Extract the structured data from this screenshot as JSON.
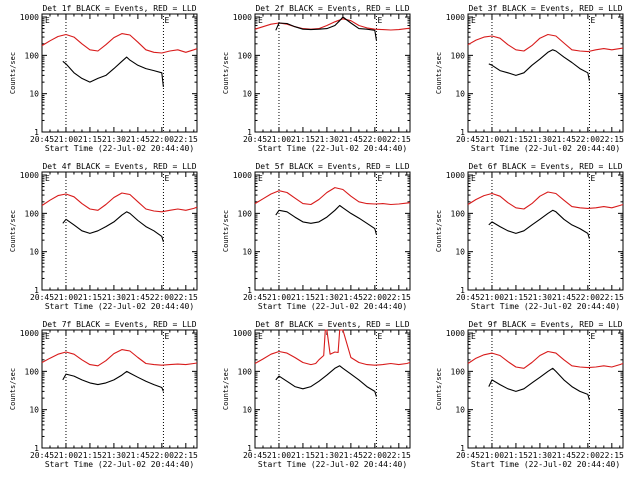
{
  "figure": {
    "xlabel": "Start Time (22-Jul-02 20:44:40)",
    "ylabel": "Counts/sec",
    "xticks": [
      "20:45",
      "21:00",
      "21:15",
      "21:30",
      "21:45",
      "22:00",
      "22:15"
    ],
    "yticks": [
      "1",
      "10",
      "100",
      "1000"
    ],
    "marker_label": "E"
  },
  "chart_data": [
    {
      "type": "line",
      "title": "Det 1f BLACK = Events, RED = LLD",
      "xlim": [
        0,
        97
      ],
      "ylim": [
        1,
        1200
      ],
      "yscale": "log",
      "xtick_minutes": [
        0,
        15,
        30,
        45,
        60,
        75,
        90
      ],
      "event_markers_min": [
        15,
        76
      ],
      "series": [
        {
          "name": "LLD",
          "color": "#d81b1b",
          "x": [
            0,
            5,
            10,
            15,
            20,
            25,
            30,
            35,
            40,
            45,
            50,
            55,
            60,
            65,
            70,
            75,
            80,
            85,
            90,
            95,
            97
          ],
          "values": [
            180,
            240,
            310,
            350,
            300,
            200,
            140,
            130,
            190,
            290,
            370,
            340,
            220,
            140,
            120,
            115,
            130,
            140,
            120,
            140,
            150
          ]
        },
        {
          "name": "Events",
          "color": "#000000",
          "x": [
            13,
            15,
            20,
            25,
            30,
            35,
            40,
            45,
            50,
            53,
            55,
            60,
            65,
            70,
            75,
            76
          ],
          "values": [
            70,
            60,
            35,
            25,
            20,
            25,
            30,
            45,
            70,
            90,
            75,
            55,
            45,
            40,
            35,
            15
          ]
        }
      ]
    },
    {
      "type": "line",
      "title": "Det 2f BLACK = Events, RED = LLD",
      "xlim": [
        0,
        97
      ],
      "ylim": [
        1,
        1200
      ],
      "yscale": "log",
      "xtick_minutes": [
        0,
        15,
        30,
        45,
        60,
        75,
        90
      ],
      "event_markers_min": [
        15,
        76
      ],
      "series": [
        {
          "name": "LLD",
          "color": "#d81b1b",
          "x": [
            0,
            5,
            10,
            15,
            20,
            25,
            30,
            35,
            40,
            45,
            50,
            55,
            60,
            65,
            70,
            75,
            80,
            85,
            90,
            95,
            97
          ],
          "values": [
            480,
            560,
            650,
            700,
            650,
            560,
            500,
            480,
            500,
            600,
            750,
            900,
            800,
            600,
            520,
            480,
            470,
            460,
            470,
            500,
            510
          ]
        },
        {
          "name": "Events",
          "color": "#000000",
          "x": [
            13,
            15,
            20,
            25,
            30,
            35,
            40,
            45,
            50,
            53,
            55,
            60,
            65,
            70,
            75,
            76
          ],
          "values": [
            450,
            700,
            680,
            560,
            480,
            470,
            480,
            500,
            600,
            800,
            1000,
            700,
            500,
            480,
            450,
            250
          ]
        }
      ]
    },
    {
      "type": "line",
      "title": "Det 3f BLACK = Events, RED = LLD",
      "xlim": [
        0,
        97
      ],
      "ylim": [
        1,
        1200
      ],
      "yscale": "log",
      "xtick_minutes": [
        0,
        15,
        30,
        45,
        60,
        75,
        90
      ],
      "event_markers_min": [
        15,
        76
      ],
      "series": [
        {
          "name": "LLD",
          "color": "#d81b1b",
          "x": [
            0,
            5,
            10,
            15,
            20,
            25,
            30,
            35,
            40,
            45,
            50,
            55,
            60,
            65,
            70,
            75,
            80,
            85,
            90,
            95,
            97
          ],
          "values": [
            190,
            250,
            300,
            320,
            280,
            190,
            140,
            130,
            180,
            280,
            350,
            320,
            210,
            140,
            130,
            125,
            140,
            150,
            140,
            150,
            155
          ]
        },
        {
          "name": "Events",
          "color": "#000000",
          "x": [
            13,
            15,
            20,
            25,
            30,
            35,
            40,
            45,
            50,
            53,
            55,
            60,
            65,
            70,
            75,
            76
          ],
          "values": [
            60,
            55,
            40,
            35,
            30,
            35,
            55,
            80,
            120,
            140,
            130,
            90,
            65,
            45,
            35,
            22
          ]
        }
      ]
    },
    {
      "type": "line",
      "title": "Det 4f BLACK = Events, RED = LLD",
      "xlim": [
        0,
        97
      ],
      "ylim": [
        1,
        1200
      ],
      "yscale": "log",
      "xtick_minutes": [
        0,
        15,
        30,
        45,
        60,
        75,
        90
      ],
      "event_markers_min": [
        15,
        76
      ],
      "series": [
        {
          "name": "LLD",
          "color": "#d81b1b",
          "x": [
            0,
            5,
            10,
            15,
            20,
            25,
            30,
            35,
            40,
            45,
            50,
            55,
            60,
            65,
            70,
            75,
            80,
            85,
            90,
            95,
            97
          ],
          "values": [
            160,
            220,
            290,
            320,
            270,
            180,
            130,
            120,
            170,
            260,
            340,
            310,
            200,
            130,
            115,
            110,
            120,
            130,
            120,
            135,
            145
          ]
        },
        {
          "name": "Events",
          "color": "#000000",
          "x": [
            13,
            15,
            20,
            25,
            30,
            35,
            40,
            45,
            50,
            53,
            55,
            60,
            65,
            70,
            75,
            76
          ],
          "values": [
            55,
            70,
            50,
            35,
            30,
            35,
            45,
            60,
            90,
            110,
            100,
            65,
            45,
            35,
            25,
            18
          ]
        }
      ]
    },
    {
      "type": "line",
      "title": "Det 5f BLACK = Events, RED = LLD",
      "xlim": [
        0,
        97
      ],
      "ylim": [
        1,
        1200
      ],
      "yscale": "log",
      "xtick_minutes": [
        0,
        15,
        30,
        45,
        60,
        75,
        90
      ],
      "event_markers_min": [
        15,
        76
      ],
      "series": [
        {
          "name": "LLD",
          "color": "#d81b1b",
          "x": [
            0,
            5,
            10,
            15,
            20,
            25,
            30,
            35,
            40,
            45,
            50,
            55,
            60,
            65,
            70,
            75,
            80,
            85,
            90,
            95,
            97
          ],
          "values": [
            180,
            240,
            320,
            390,
            350,
            250,
            180,
            170,
            230,
            350,
            470,
            420,
            280,
            200,
            180,
            175,
            180,
            170,
            175,
            185,
            190
          ]
        },
        {
          "name": "Events",
          "color": "#000000",
          "x": [
            13,
            15,
            20,
            25,
            30,
            35,
            40,
            45,
            50,
            53,
            55,
            60,
            65,
            70,
            75,
            76
          ],
          "values": [
            90,
            120,
            110,
            80,
            60,
            55,
            60,
            80,
            120,
            160,
            140,
            100,
            75,
            55,
            40,
            28
          ]
        }
      ]
    },
    {
      "type": "line",
      "title": "Det 6f BLACK = Events, RED = LLD",
      "xlim": [
        0,
        97
      ],
      "ylim": [
        1,
        1200
      ],
      "yscale": "log",
      "xtick_minutes": [
        0,
        15,
        30,
        45,
        60,
        75,
        90
      ],
      "event_markers_min": [
        15,
        76
      ],
      "series": [
        {
          "name": "LLD",
          "color": "#d81b1b",
          "x": [
            0,
            5,
            10,
            15,
            20,
            25,
            30,
            35,
            40,
            45,
            50,
            55,
            60,
            65,
            70,
            75,
            80,
            85,
            90,
            95,
            97
          ],
          "values": [
            170,
            230,
            290,
            330,
            280,
            190,
            140,
            130,
            180,
            280,
            360,
            330,
            220,
            150,
            140,
            135,
            140,
            150,
            140,
            160,
            170
          ]
        },
        {
          "name": "Events",
          "color": "#000000",
          "x": [
            13,
            15,
            20,
            25,
            30,
            35,
            40,
            45,
            50,
            53,
            55,
            60,
            65,
            70,
            75,
            76
          ],
          "values": [
            50,
            60,
            45,
            35,
            30,
            35,
            50,
            70,
            100,
            120,
            110,
            70,
            50,
            40,
            30,
            22
          ]
        }
      ]
    },
    {
      "type": "line",
      "title": "Det 7f BLACK = Events, RED = LLD",
      "xlim": [
        0,
        97
      ],
      "ylim": [
        1,
        1200
      ],
      "yscale": "log",
      "xtick_minutes": [
        0,
        15,
        30,
        45,
        60,
        75,
        90
      ],
      "event_markers_min": [
        15,
        76
      ],
      "series": [
        {
          "name": "LLD",
          "color": "#d81b1b",
          "x": [
            0,
            5,
            10,
            15,
            20,
            25,
            30,
            35,
            40,
            45,
            50,
            55,
            60,
            65,
            70,
            75,
            80,
            85,
            90,
            95,
            97
          ],
          "values": [
            170,
            220,
            280,
            320,
            280,
            200,
            150,
            140,
            190,
            290,
            370,
            340,
            230,
            160,
            150,
            145,
            150,
            155,
            150,
            160,
            165
          ]
        },
        {
          "name": "Events",
          "color": "#000000",
          "x": [
            13,
            15,
            20,
            25,
            30,
            35,
            40,
            45,
            50,
            53,
            55,
            60,
            65,
            70,
            75,
            76
          ],
          "values": [
            60,
            85,
            75,
            60,
            50,
            45,
            50,
            60,
            80,
            100,
            90,
            70,
            55,
            45,
            38,
            30
          ]
        }
      ]
    },
    {
      "type": "line",
      "title": "Det 8f BLACK = Events, RED = LLD",
      "xlim": [
        0,
        97
      ],
      "ylim": [
        1,
        1200
      ],
      "yscale": "log",
      "xtick_minutes": [
        0,
        15,
        30,
        45,
        60,
        75,
        90
      ],
      "event_markers_min": [
        15,
        76
      ],
      "series": [
        {
          "name": "LLD",
          "color": "#d81b1b",
          "x": [
            0,
            5,
            10,
            15,
            20,
            25,
            30,
            35,
            38,
            40,
            43,
            44,
            45,
            47,
            50,
            52,
            53,
            55,
            60,
            65,
            70,
            75,
            80,
            85,
            90,
            95,
            97
          ],
          "values": [
            160,
            210,
            280,
            330,
            300,
            230,
            170,
            150,
            160,
            200,
            260,
            1200,
            1200,
            280,
            320,
            310,
            1200,
            1200,
            230,
            170,
            150,
            145,
            150,
            160,
            150,
            160,
            170
          ]
        },
        {
          "name": "Events",
          "color": "#000000",
          "x": [
            13,
            15,
            20,
            25,
            30,
            35,
            40,
            45,
            50,
            53,
            55,
            60,
            65,
            70,
            75,
            76
          ],
          "values": [
            60,
            75,
            55,
            40,
            35,
            40,
            55,
            80,
            120,
            140,
            120,
            85,
            60,
            40,
            30,
            22
          ]
        }
      ]
    },
    {
      "type": "line",
      "title": "Det 9f BLACK = Events, RED = LLD",
      "xlim": [
        0,
        97
      ],
      "ylim": [
        1,
        1200
      ],
      "yscale": "log",
      "xtick_minutes": [
        0,
        15,
        30,
        45,
        60,
        75,
        90
      ],
      "event_markers_min": [
        15,
        76
      ],
      "series": [
        {
          "name": "LLD",
          "color": "#d81b1b",
          "x": [
            0,
            5,
            10,
            15,
            20,
            25,
            30,
            35,
            40,
            45,
            50,
            55,
            60,
            65,
            70,
            75,
            80,
            85,
            90,
            95,
            97
          ],
          "values": [
            160,
            220,
            270,
            300,
            260,
            180,
            130,
            120,
            170,
            260,
            330,
            300,
            200,
            140,
            130,
            125,
            130,
            140,
            130,
            150,
            160
          ]
        },
        {
          "name": "Events",
          "color": "#000000",
          "x": [
            13,
            15,
            20,
            25,
            30,
            35,
            40,
            45,
            50,
            53,
            55,
            60,
            65,
            70,
            75,
            76
          ],
          "values": [
            40,
            60,
            45,
            35,
            30,
            35,
            50,
            70,
            100,
            120,
            100,
            60,
            40,
            30,
            25,
            18
          ]
        }
      ]
    }
  ]
}
